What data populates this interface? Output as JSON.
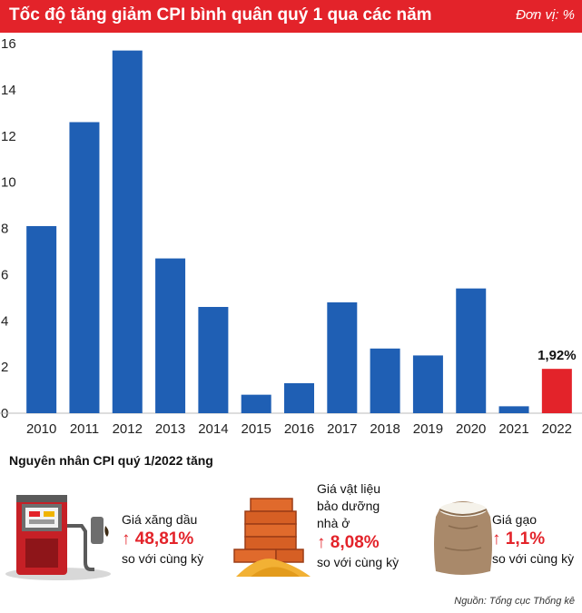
{
  "header": {
    "title": "Tốc độ tăng giảm CPI bình quân quý 1 qua các năm",
    "unit": "Đơn vị: %"
  },
  "chart_data": {
    "type": "bar",
    "categories": [
      "2010",
      "2011",
      "2012",
      "2013",
      "2014",
      "2015",
      "2016",
      "2017",
      "2018",
      "2019",
      "2020",
      "2021",
      "2022"
    ],
    "values": [
      8.1,
      12.6,
      15.7,
      6.7,
      4.6,
      0.8,
      1.3,
      4.8,
      2.8,
      2.5,
      5.4,
      0.3,
      1.92
    ],
    "highlight_index": 12,
    "highlight_label": "1,92%",
    "ylim": [
      0,
      16
    ],
    "yticks": [
      0,
      2,
      4,
      6,
      8,
      10,
      12,
      14,
      16
    ],
    "bar_color": "#1f5fb4",
    "highlight_color": "#e3232a",
    "grid": false
  },
  "causes": {
    "title": "Nguyên nhân CPI quý 1/2022 tăng",
    "items": [
      {
        "icon": "fuel-pump-icon",
        "label": "Giá xăng dầu",
        "value": "↑ 48,81%",
        "note": "so với cùng kỳ"
      },
      {
        "icon": "bricks-icon",
        "label": "Giá vật liệu\nbảo dưỡng\nnhà ở",
        "value": "↑ 8,08%",
        "note": "so với cùng kỳ"
      },
      {
        "icon": "rice-sack-icon",
        "label": "Giá gạo",
        "value": "↑ 1,1%",
        "note": "so với cùng kỳ"
      }
    ]
  },
  "source": "Nguồn: Tổng cục Thống kê",
  "colors": {
    "accent": "#e3232a",
    "bar": "#1f5fb4"
  }
}
